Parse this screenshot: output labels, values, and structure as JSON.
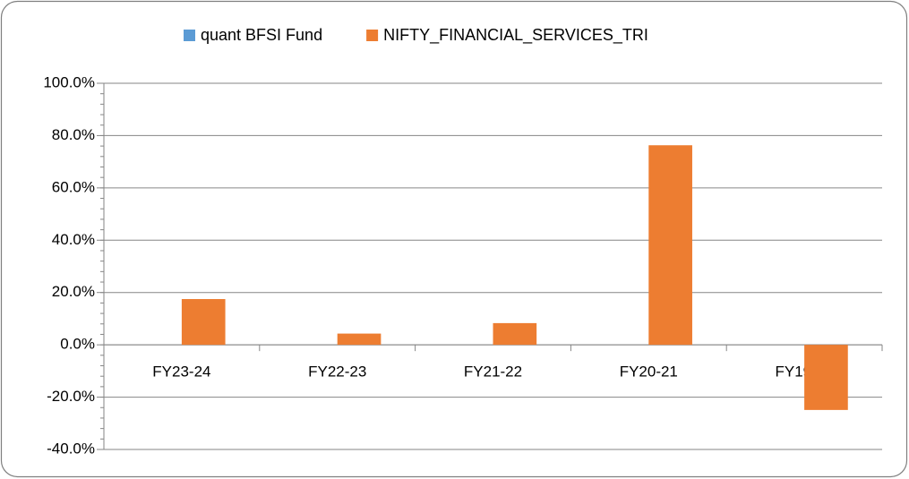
{
  "chart_data": {
    "type": "bar",
    "categories": [
      "FY23-24",
      "FY22-23",
      "FY21-22",
      "FY20-21",
      "FY19-20"
    ],
    "series": [
      {
        "name": "quant BFSI Fund",
        "color": "#5b9bd5",
        "values": [
          null,
          null,
          null,
          null,
          null
        ]
      },
      {
        "name": "NIFTY_FINANCIAL_SERVICES_TRI",
        "color": "#ed7d31",
        "values": [
          17.5,
          4.3,
          8.3,
          76.3,
          -24.9
        ]
      }
    ],
    "ylim": [
      -40,
      100
    ],
    "yticks": [
      {
        "value": -40,
        "label": "-40.0%"
      },
      {
        "value": -20,
        "label": "-20.0%"
      },
      {
        "value": 0,
        "label": "0.0%"
      },
      {
        "value": 20,
        "label": "20.0%"
      },
      {
        "value": 40,
        "label": "40.0%"
      },
      {
        "value": 60,
        "label": "60.0%"
      },
      {
        "value": 80,
        "label": "80.0%"
      },
      {
        "value": 100,
        "label": "100.0%"
      }
    ],
    "grid": true,
    "legend": "top"
  }
}
